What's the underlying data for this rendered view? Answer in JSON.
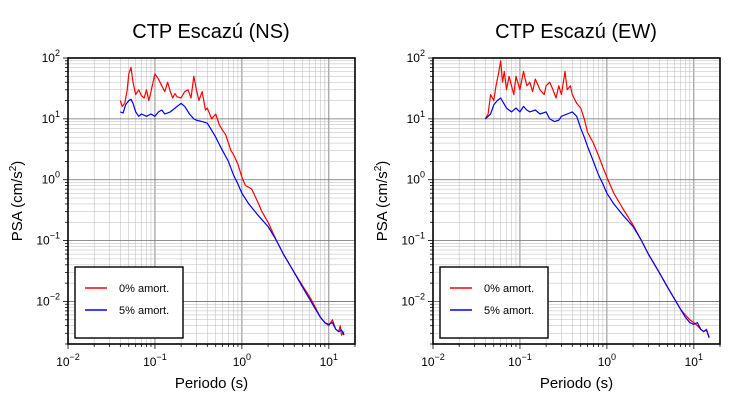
{
  "chart_data": [
    {
      "type": "line",
      "title": "CTP Escazú (NS)",
      "xlabel": "Periodo (s)",
      "ylabel": {
        "base": "PSA (cm/s",
        "exp": "2",
        "tail": ")"
      },
      "x_scale": "log",
      "y_scale": "log",
      "xlim": [
        0.01,
        20
      ],
      "ylim": [
        0.002,
        100
      ],
      "grid": true,
      "legend_position": "bottom-left",
      "x_ticks": [
        {
          "base": "10",
          "exp": "−2",
          "value": 0.01
        },
        {
          "base": "10",
          "exp": "−1",
          "value": 0.1
        },
        {
          "base": "10",
          "exp": "0",
          "value": 1
        },
        {
          "base": "10",
          "exp": "1",
          "value": 10
        }
      ],
      "y_ticks": [
        {
          "base": "10",
          "exp": "2",
          "value": 100
        },
        {
          "base": "10",
          "exp": "1",
          "value": 10
        },
        {
          "base": "10",
          "exp": "0",
          "value": 1
        },
        {
          "base": "10",
          "exp": "−1",
          "value": 0.1
        },
        {
          "base": "10",
          "exp": "−2",
          "value": 0.01
        }
      ],
      "series": [
        {
          "name": "0% amort.",
          "color": "#ff0000",
          "x": [
            0.04,
            0.042,
            0.045,
            0.048,
            0.05,
            0.053,
            0.056,
            0.06,
            0.065,
            0.07,
            0.075,
            0.08,
            0.085,
            0.09,
            0.1,
            0.11,
            0.12,
            0.13,
            0.14,
            0.15,
            0.16,
            0.17,
            0.18,
            0.2,
            0.22,
            0.24,
            0.26,
            0.28,
            0.3,
            0.32,
            0.35,
            0.38,
            0.4,
            0.45,
            0.5,
            0.55,
            0.6,
            0.65,
            0.7,
            0.75,
            0.8,
            0.9,
            1.0,
            1.1,
            1.2,
            1.3,
            1.5,
            1.7,
            2.0,
            2.5,
            3.0,
            4.0,
            5.0,
            6.0,
            7.0,
            8.0,
            9.0,
            10.0,
            11.0,
            12.0,
            13.0,
            13.5,
            14.0,
            15.0
          ],
          "y": [
            20,
            16,
            18,
            30,
            55,
            70,
            40,
            25,
            30,
            24,
            22,
            30,
            20,
            28,
            55,
            45,
            35,
            28,
            40,
            28,
            22,
            26,
            23,
            22,
            28,
            30,
            22,
            50,
            30,
            20,
            28,
            14,
            15,
            10,
            12,
            8,
            6.5,
            5.5,
            4,
            3,
            2.6,
            1.8,
            1.1,
            0.8,
            0.75,
            0.7,
            0.45,
            0.3,
            0.2,
            0.1,
            0.06,
            0.03,
            0.018,
            0.012,
            0.008,
            0.0055,
            0.0045,
            0.004,
            0.005,
            0.0035,
            0.0032,
            0.004,
            0.0028,
            0.0032
          ]
        },
        {
          "name": "5% amort.",
          "color": "#0000ff",
          "x": [
            0.04,
            0.043,
            0.046,
            0.05,
            0.053,
            0.056,
            0.06,
            0.065,
            0.07,
            0.08,
            0.09,
            0.1,
            0.11,
            0.12,
            0.13,
            0.15,
            0.17,
            0.2,
            0.22,
            0.25,
            0.28,
            0.3,
            0.35,
            0.4,
            0.45,
            0.5,
            0.55,
            0.6,
            0.7,
            0.8,
            0.9,
            1.0,
            1.2,
            1.5,
            2.0,
            2.5,
            3.0,
            4.0,
            5.0,
            6.0,
            7.0,
            8.0,
            9.0,
            10.0,
            11.0,
            12.0,
            13.0,
            14.0,
            15.0
          ],
          "y": [
            13,
            12.5,
            17,
            20,
            21,
            18,
            13,
            11,
            12,
            11,
            12,
            11,
            13,
            14,
            12,
            13,
            15,
            18,
            16,
            12,
            10,
            9.5,
            9,
            8.5,
            6.5,
            5,
            3.8,
            3,
            2,
            1.2,
            0.85,
            0.6,
            0.4,
            0.27,
            0.17,
            0.1,
            0.06,
            0.03,
            0.017,
            0.011,
            0.0075,
            0.0055,
            0.0045,
            0.0042,
            0.0045,
            0.0035,
            0.0032,
            0.0034,
            0.0028
          ]
        }
      ]
    },
    {
      "type": "line",
      "title": "CTP Escazú (EW)",
      "xlabel": "Periodo (s)",
      "ylabel": {
        "base": "PSA (cm/s",
        "exp": "2",
        "tail": ")"
      },
      "x_scale": "log",
      "y_scale": "log",
      "xlim": [
        0.01,
        20
      ],
      "ylim": [
        0.002,
        100
      ],
      "grid": true,
      "legend_position": "bottom-left",
      "x_ticks": [
        {
          "base": "10",
          "exp": "−2",
          "value": 0.01
        },
        {
          "base": "10",
          "exp": "−1",
          "value": 0.1
        },
        {
          "base": "10",
          "exp": "0",
          "value": 1
        },
        {
          "base": "10",
          "exp": "1",
          "value": 10
        }
      ],
      "y_ticks": [
        {
          "base": "10",
          "exp": "2",
          "value": 100
        },
        {
          "base": "10",
          "exp": "1",
          "value": 10
        },
        {
          "base": "10",
          "exp": "0",
          "value": 1
        },
        {
          "base": "10",
          "exp": "−1",
          "value": 0.1
        },
        {
          "base": "10",
          "exp": "−2",
          "value": 0.01
        }
      ],
      "series": [
        {
          "name": "0% amort.",
          "color": "#ff0000",
          "x": [
            0.04,
            0.043,
            0.046,
            0.05,
            0.053,
            0.056,
            0.06,
            0.063,
            0.066,
            0.07,
            0.075,
            0.08,
            0.085,
            0.09,
            0.1,
            0.11,
            0.12,
            0.13,
            0.14,
            0.15,
            0.17,
            0.19,
            0.2,
            0.22,
            0.24,
            0.26,
            0.28,
            0.3,
            0.33,
            0.35,
            0.38,
            0.4,
            0.45,
            0.5,
            0.55,
            0.6,
            0.7,
            0.8,
            0.9,
            1.0,
            1.2,
            1.5,
            2.0,
            2.5,
            3.0,
            4.0,
            5.0,
            6.0,
            7.0,
            8.0,
            9.0,
            10.0,
            11.0,
            12.0,
            13.0,
            14.0,
            15.0
          ],
          "y": [
            10,
            12,
            25,
            20,
            35,
            50,
            90,
            40,
            60,
            30,
            50,
            35,
            25,
            50,
            30,
            60,
            35,
            40,
            28,
            45,
            30,
            25,
            35,
            40,
            30,
            22,
            35,
            25,
            60,
            30,
            35,
            25,
            18,
            15,
            10,
            6,
            4,
            2.5,
            1.6,
            1.1,
            0.6,
            0.35,
            0.18,
            0.1,
            0.06,
            0.03,
            0.017,
            0.011,
            0.0075,
            0.006,
            0.005,
            0.0045,
            0.004,
            0.0035,
            0.0032,
            0.0035,
            0.0025
          ]
        },
        {
          "name": "5% amort.",
          "color": "#0000ff",
          "x": [
            0.04,
            0.043,
            0.046,
            0.05,
            0.055,
            0.06,
            0.065,
            0.07,
            0.08,
            0.09,
            0.1,
            0.11,
            0.12,
            0.13,
            0.15,
            0.17,
            0.2,
            0.22,
            0.25,
            0.28,
            0.3,
            0.35,
            0.4,
            0.45,
            0.5,
            0.55,
            0.6,
            0.7,
            0.8,
            0.9,
            1.0,
            1.2,
            1.5,
            2.0,
            2.5,
            3.0,
            4.0,
            5.0,
            6.0,
            7.0,
            8.0,
            9.0,
            10.0,
            11.0,
            12.0,
            13.0,
            14.0,
            15.0
          ],
          "y": [
            10,
            11,
            12,
            17,
            20,
            22,
            18,
            15,
            13,
            15,
            13,
            16,
            14,
            13,
            14,
            12,
            13,
            10,
            9,
            9.5,
            11,
            12,
            13,
            11,
            7,
            5,
            3.5,
            2,
            1.2,
            0.85,
            0.6,
            0.4,
            0.27,
            0.17,
            0.1,
            0.06,
            0.03,
            0.017,
            0.011,
            0.0075,
            0.0055,
            0.0045,
            0.0042,
            0.0045,
            0.0035,
            0.0032,
            0.0034,
            0.0026
          ]
        }
      ]
    }
  ]
}
